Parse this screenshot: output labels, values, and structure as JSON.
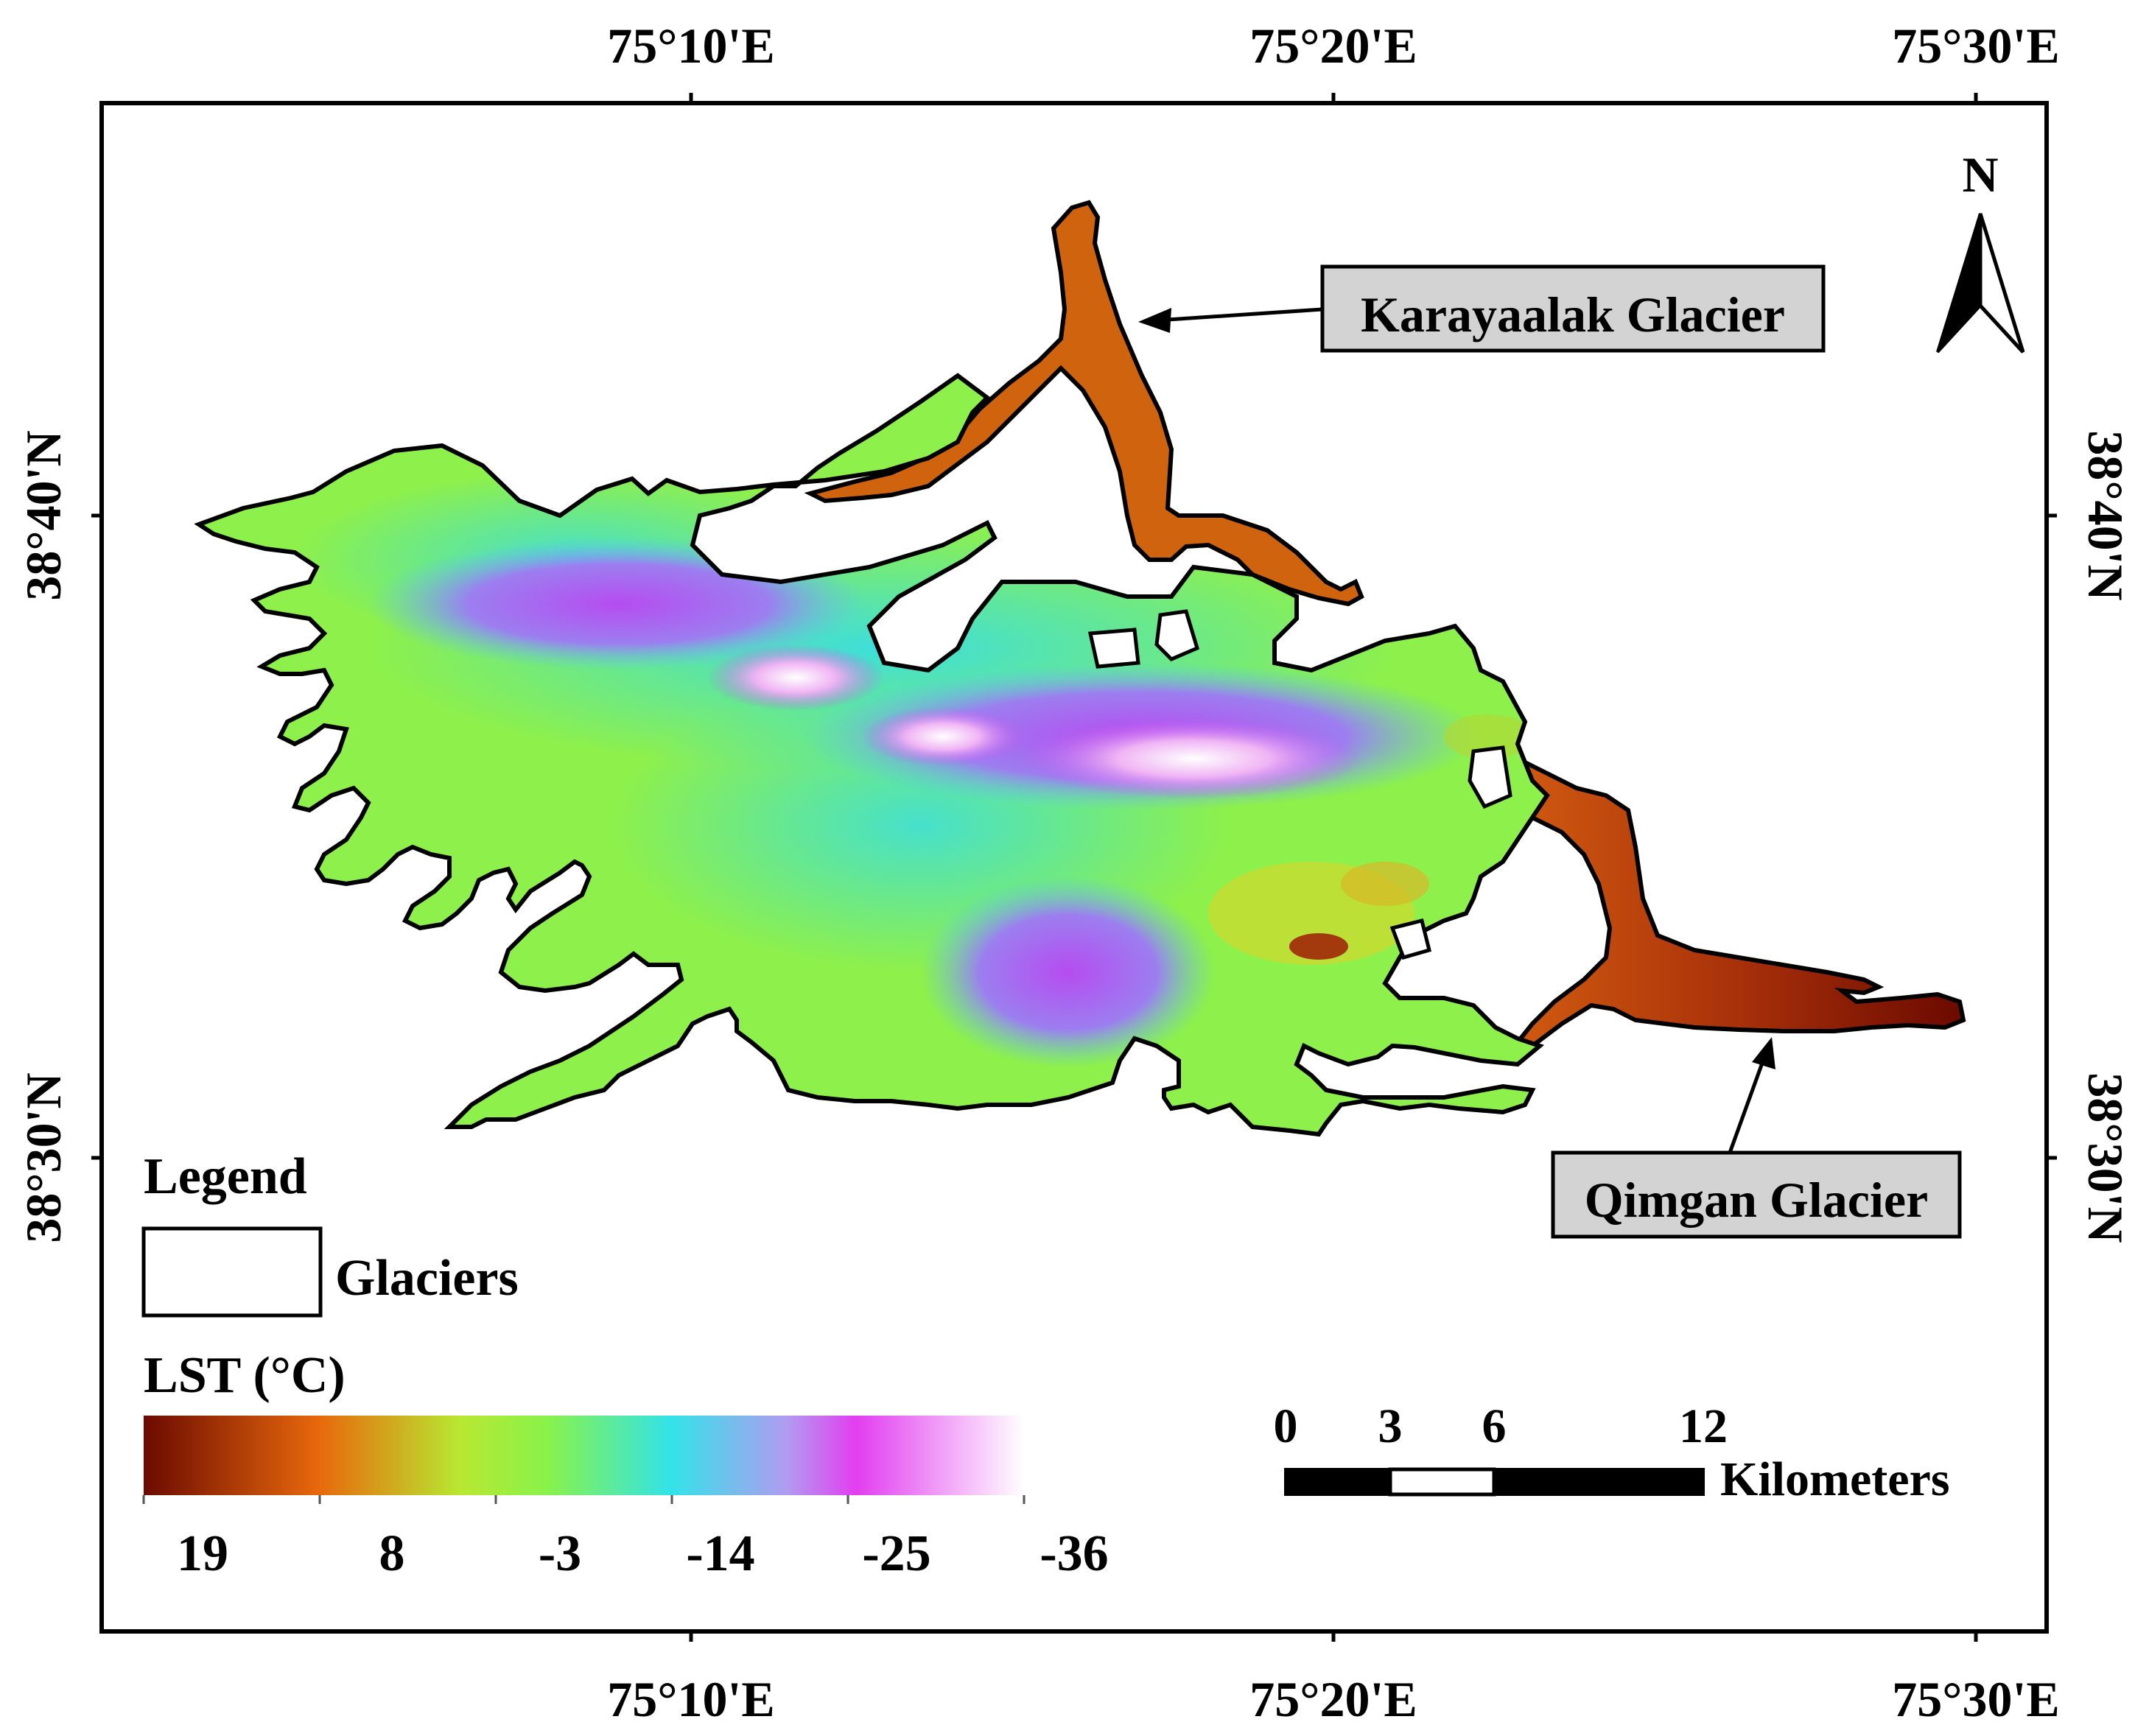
{
  "map": {
    "coords": {
      "top": [
        "75°10'E",
        "75°20'E",
        "75°30'E"
      ],
      "bottom": [
        "75°10'E",
        "75°20'E",
        "75°30'E"
      ],
      "left": [
        "38°40'N",
        "38°30'N"
      ],
      "right": [
        "38°40'N",
        "38°30'N"
      ]
    },
    "labels": {
      "karayaalak": "Karayaalak Glacier",
      "qimgan": "Qimgan Glacier"
    },
    "north": "N"
  },
  "legend": {
    "title": "Legend",
    "glaciers": "Glaciers",
    "lst_title": "LST (°C)",
    "ticks": [
      "19",
      "8",
      "-3",
      "-14",
      "-25",
      "-36"
    ],
    "gradient_colors": [
      "#6b0a00",
      "#e8690c",
      "#b8e832",
      "#88f24b",
      "#32e3e8",
      "#b09cf0",
      "#e23ef0",
      "#ffffff"
    ]
  },
  "scale": {
    "ticks": [
      "0",
      "3",
      "6",
      "12"
    ],
    "unit": "Kilometers"
  }
}
